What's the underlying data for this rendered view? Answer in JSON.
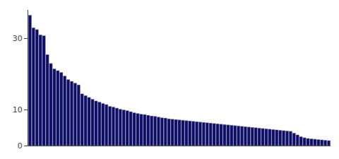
{
  "chart_data": {
    "type": "bar",
    "categories": [
      null,
      null,
      null,
      null,
      null,
      null,
      null,
      null,
      null,
      null,
      null,
      null,
      null,
      null,
      null,
      null,
      null,
      null,
      null,
      null,
      null,
      null,
      null,
      null,
      null,
      null,
      null,
      null,
      null,
      null,
      null,
      null,
      null,
      null,
      null,
      null,
      null,
      null,
      null,
      null,
      null,
      null,
      null,
      null,
      null,
      null,
      null,
      null,
      null,
      null,
      null,
      null,
      null,
      null,
      null,
      null,
      null,
      null,
      null,
      null,
      null,
      null,
      null,
      null,
      null,
      null,
      null,
      null,
      null,
      null,
      null,
      null,
      null,
      null,
      null,
      null,
      null,
      null,
      null,
      null,
      null,
      null,
      null,
      null,
      null,
      null,
      null
    ],
    "values": [
      36.5,
      33.0,
      32.5,
      31.0,
      30.8,
      25.5,
      23.0,
      21.5,
      21.0,
      20.5,
      19.5,
      18.5,
      18.0,
      17.5,
      17.0,
      14.5,
      14.0,
      13.5,
      13.0,
      12.5,
      12.2,
      11.8,
      11.5,
      11.0,
      10.8,
      10.5,
      10.2,
      10.0,
      9.8,
      9.5,
      9.2,
      9.0,
      8.8,
      8.7,
      8.5,
      8.3,
      8.2,
      8.0,
      7.8,
      7.7,
      7.5,
      7.4,
      7.3,
      7.2,
      7.1,
      7.0,
      6.9,
      6.8,
      6.7,
      6.6,
      6.5,
      6.4,
      6.3,
      6.2,
      6.1,
      6.0,
      5.9,
      5.8,
      5.7,
      5.6,
      5.5,
      5.4,
      5.3,
      5.2,
      5.1,
      5.0,
      4.9,
      4.8,
      4.7,
      4.6,
      4.5,
      4.4,
      4.3,
      4.2,
      4.1,
      4.0,
      3.5,
      3.0,
      2.5,
      2.2,
      2.0,
      1.9,
      1.8,
      1.7,
      1.6,
      1.5,
      1.4
    ],
    "color": "#0d0d6b",
    "ylim": [
      0,
      38
    ],
    "yticks": [
      0,
      10,
      30
    ],
    "grid": false,
    "tick_labels": "y"
  }
}
